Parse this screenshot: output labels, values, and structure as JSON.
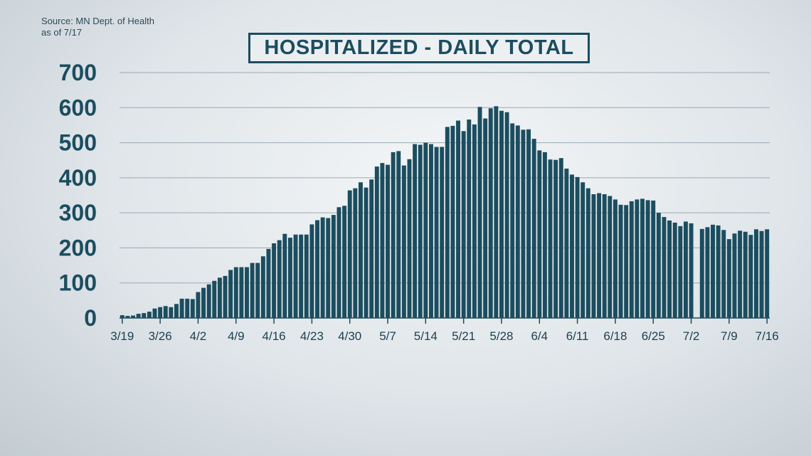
{
  "source": {
    "line1": "Source: MN Dept. of Health",
    "line2": "as of 7/17"
  },
  "chart_data": {
    "type": "bar",
    "title": "HOSPITALIZED - DAILY TOTAL",
    "xlabel": "",
    "ylabel": "",
    "ylim": [
      0,
      700
    ],
    "yticks": [
      0,
      100,
      200,
      300,
      400,
      500,
      600,
      700
    ],
    "grid": true,
    "legend": "none",
    "bar_color": "#1b4d5f",
    "start_date": "3/19",
    "xtick_labels": [
      {
        "label": "3/19",
        "index": 0
      },
      {
        "label": "3/26",
        "index": 7
      },
      {
        "label": "4/2",
        "index": 14
      },
      {
        "label": "4/9",
        "index": 21
      },
      {
        "label": "4/16",
        "index": 28
      },
      {
        "label": "4/23",
        "index": 35
      },
      {
        "label": "4/30",
        "index": 42
      },
      {
        "label": "5/7",
        "index": 49
      },
      {
        "label": "5/14",
        "index": 56
      },
      {
        "label": "5/21",
        "index": 63
      },
      {
        "label": "5/28",
        "index": 70
      },
      {
        "label": "6/4",
        "index": 77
      },
      {
        "label": "6/11",
        "index": 84
      },
      {
        "label": "6/18",
        "index": 91
      },
      {
        "label": "6/25",
        "index": 98
      },
      {
        "label": "7/2",
        "index": 105
      },
      {
        "label": "7/9",
        "index": 112
      },
      {
        "label": "7/16",
        "index": 119
      }
    ],
    "values": [
      8,
      6,
      7,
      12,
      14,
      18,
      27,
      31,
      34,
      31,
      40,
      55,
      55,
      54,
      74,
      86,
      96,
      106,
      115,
      120,
      137,
      145,
      145,
      145,
      157,
      157,
      176,
      197,
      213,
      222,
      240,
      229,
      238,
      238,
      238,
      267,
      279,
      287,
      285,
      294,
      316,
      320,
      364,
      370,
      387,
      372,
      395,
      432,
      442,
      437,
      473,
      476,
      435,
      453,
      496,
      494,
      500,
      496,
      488,
      488,
      545,
      548,
      563,
      533,
      566,
      552,
      602,
      569,
      598,
      604,
      591,
      587,
      555,
      549,
      537,
      538,
      511,
      478,
      473,
      452,
      451,
      456,
      426,
      409,
      402,
      387,
      370,
      353,
      356,
      353,
      348,
      338,
      323,
      322,
      333,
      338,
      340,
      336,
      335,
      300,
      288,
      278,
      272,
      262,
      275,
      270,
      null,
      254,
      259,
      266,
      264,
      251,
      225,
      241,
      249,
      246,
      237,
      253,
      248,
      253
    ]
  }
}
